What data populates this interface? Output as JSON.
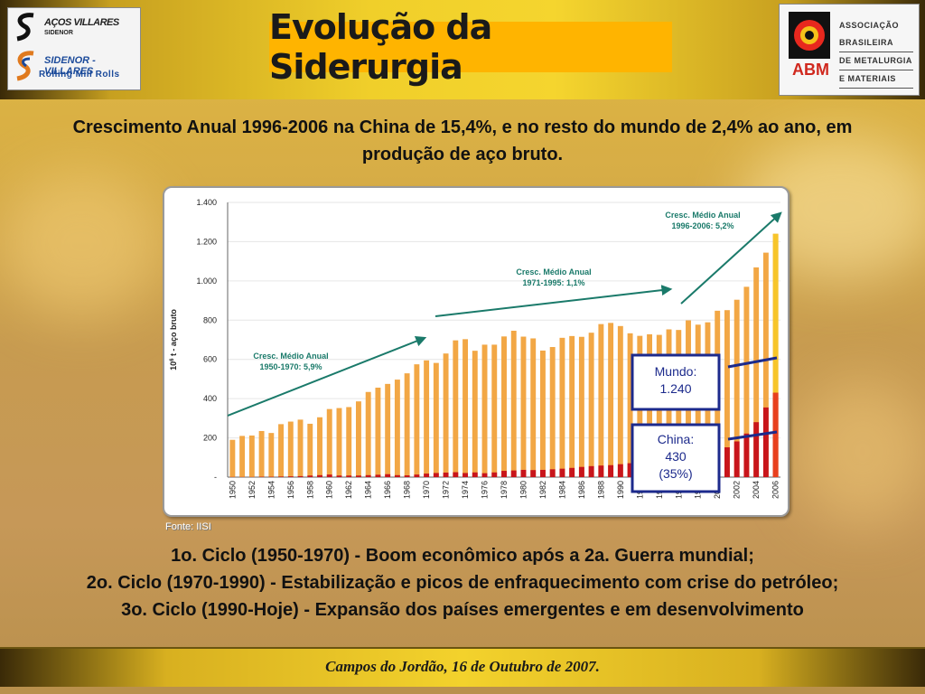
{
  "slide": {
    "title": "Evolução da Siderurgia",
    "subheading_line1": "Crescimento Anual 1996-2006 na China de 15,4%, e no resto do mundo de 2,4% ao ano, em",
    "subheading_line2": "produção de aço bruto.",
    "source": "Fonte: IISI",
    "cycle1": "1o. Ciclo (1950-1970) - Boom econômico após a 2a. Guerra mundial;",
    "cycle2": "2o. Ciclo (1970-1990) - Estabilização e picos de enfraquecimento com crise do petróleo;",
    "cycle3": "3o. Ciclo (1990-Hoje) - Expansão dos países emergentes e em desenvolvimento",
    "footer": "Campos do Jordão, 16 de Outubro de 2007."
  },
  "logos": {
    "left_line1": "AÇOS VILLARES",
    "left_line1b": "SIDENOR",
    "left_line2": "SIDENOR - VILLARES",
    "left_line3": "Rolling Mill Rolls",
    "right_abm": "ABM",
    "right_assoc1": "ASSOCIAÇÃO BRASILEIRA",
    "right_assoc2": "DE METALURGIA",
    "right_assoc3": "E MATERIAIS"
  },
  "colors": {
    "world_bar": "#f2a745",
    "china_bar": "#c8151b",
    "arrow": "#1a7a6a",
    "annotation_text": "#1a7a6a",
    "callout_border": "#1c2a8c",
    "callout_text": "#1c2a8c"
  },
  "chart_data": {
    "type": "bar",
    "ylabel_main": "10",
    "ylabel_sup": "6",
    "ylabel_rest": " t - aço bruto",
    "ylim": [
      0,
      1400
    ],
    "yticks": [
      0,
      200,
      400,
      600,
      800,
      1000,
      1200,
      1400
    ],
    "ytick_labels": [
      "-",
      "200",
      "400",
      "600",
      "800",
      "1.000",
      "1.200",
      "1.400"
    ],
    "grid": true,
    "x": [
      1950,
      1951,
      1952,
      1953,
      1954,
      1955,
      1956,
      1957,
      1958,
      1959,
      1960,
      1961,
      1962,
      1963,
      1964,
      1965,
      1966,
      1967,
      1968,
      1969,
      1970,
      1971,
      1972,
      1973,
      1974,
      1975,
      1976,
      1977,
      1978,
      1979,
      1980,
      1981,
      1982,
      1983,
      1984,
      1985,
      1986,
      1987,
      1988,
      1989,
      1990,
      1991,
      1992,
      1993,
      1994,
      1995,
      1996,
      1997,
      1998,
      1999,
      2000,
      2001,
      2002,
      2003,
      2004,
      2005,
      2006
    ],
    "xtick_labels": [
      "1950",
      "1952",
      "1954",
      "1956",
      "1958",
      "1960",
      "1962",
      "1964",
      "1966",
      "1968",
      "1970",
      "1972",
      "1974",
      "1976",
      "1978",
      "1980",
      "1982",
      "1984",
      "1986",
      "1988",
      "1990",
      "1992",
      "1994",
      "1996",
      "1998",
      "2000",
      "2002",
      "2004",
      "2006"
    ],
    "series": [
      {
        "name": "Mundo",
        "values": [
          190,
          210,
          212,
          235,
          225,
          270,
          283,
          293,
          272,
          305,
          347,
          352,
          357,
          386,
          434,
          456,
          475,
          497,
          529,
          575,
          595,
          582,
          630,
          697,
          703,
          644,
          675,
          675,
          717,
          746,
          716,
          707,
          645,
          663,
          710,
          719,
          715,
          736,
          780,
          786,
          770,
          733,
          720,
          728,
          725,
          753,
          750,
          799,
          777,
          789,
          848,
          851,
          904,
          970,
          1069,
          1144,
          1240
        ]
      },
      {
        "name": "China",
        "values": [
          1,
          1,
          1,
          2,
          2,
          3,
          4,
          5,
          8,
          10,
          13,
          8,
          8,
          8,
          10,
          12,
          15,
          10,
          9,
          13,
          18,
          21,
          23,
          25,
          21,
          24,
          20,
          24,
          32,
          34,
          37,
          36,
          37,
          40,
          43,
          47,
          52,
          56,
          59,
          61,
          66,
          71,
          81,
          89,
          93,
          95,
          101,
          109,
          115,
          124,
          129,
          152,
          182,
          222,
          280,
          355,
          430
        ]
      }
    ],
    "annotations": [
      {
        "line1": "Cresc. Médio Anual",
        "line2": "1950-1970: 5,9%"
      },
      {
        "line1": "Cresc. Médio Anual",
        "line2": "1971-1995: 1,1%"
      },
      {
        "line1": "Cresc. Médio Anual",
        "line2": "1996-2006: 5,2%"
      }
    ],
    "callouts": {
      "world": {
        "line1": "Mundo:",
        "line2": "1.240"
      },
      "china": {
        "line1": "China:",
        "line2": "430",
        "line3": "(35%)"
      }
    }
  }
}
